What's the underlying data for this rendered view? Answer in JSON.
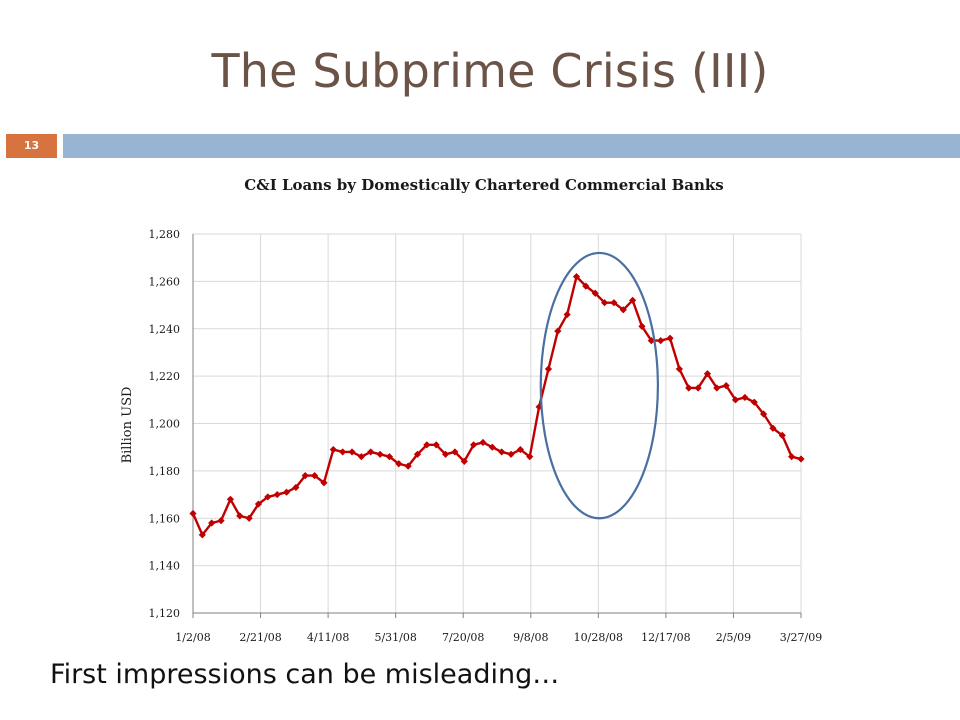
{
  "slide": {
    "title": "The Subprime Crisis (III)",
    "number": "13",
    "caption": "First impressions can be misleading…",
    "colors": {
      "title": "#6b5347",
      "number_badge": "#d6733f",
      "accent_bar": "#97b5d3"
    }
  },
  "chart_data": {
    "type": "line",
    "title": "C&I Loans by Domestically Chartered Commercial Banks",
    "ylabel": "Billion USD",
    "xlabel": "",
    "ylim": [
      1120,
      1280
    ],
    "yticks": [
      1120,
      1140,
      1160,
      1180,
      1200,
      1220,
      1240,
      1260,
      1280
    ],
    "ytick_labels": [
      "1,120",
      "1,140",
      "1,160",
      "1,180",
      "1,200",
      "1,220",
      "1,240",
      "1,260",
      "1,280"
    ],
    "xtick_labels": [
      "1/2/08",
      "2/21/08",
      "4/11/08",
      "5/31/08",
      "7/20/08",
      "9/8/08",
      "10/28/08",
      "12/17/08",
      "2/5/09",
      "3/27/09"
    ],
    "grid": true,
    "series": [
      {
        "color": "#c00000",
        "marker": "diamond",
        "values": [
          1162,
          1153,
          1158,
          1159,
          1168,
          1161,
          1160,
          1166,
          1169,
          1170,
          1171,
          1173,
          1178,
          1178,
          1175,
          1189,
          1188,
          1188,
          1186,
          1188,
          1187,
          1186,
          1183,
          1182,
          1187,
          1191,
          1191,
          1187,
          1188,
          1184,
          1191,
          1192,
          1190,
          1188,
          1187,
          1189,
          1186,
          1207,
          1223,
          1239,
          1246,
          1262,
          1258,
          1255,
          1251,
          1251,
          1248,
          1252,
          1241,
          1235,
          1235,
          1236,
          1223,
          1215,
          1215,
          1221,
          1215,
          1216,
          1210,
          1211,
          1209,
          1204,
          1198,
          1195,
          1186,
          1185
        ]
      }
    ],
    "annotations": [
      {
        "type": "ellipse",
        "color": "#4a6fa0",
        "x_range": [
          "9/8/08",
          "12/17/08"
        ],
        "y_range": [
          1160,
          1272
        ]
      }
    ]
  }
}
